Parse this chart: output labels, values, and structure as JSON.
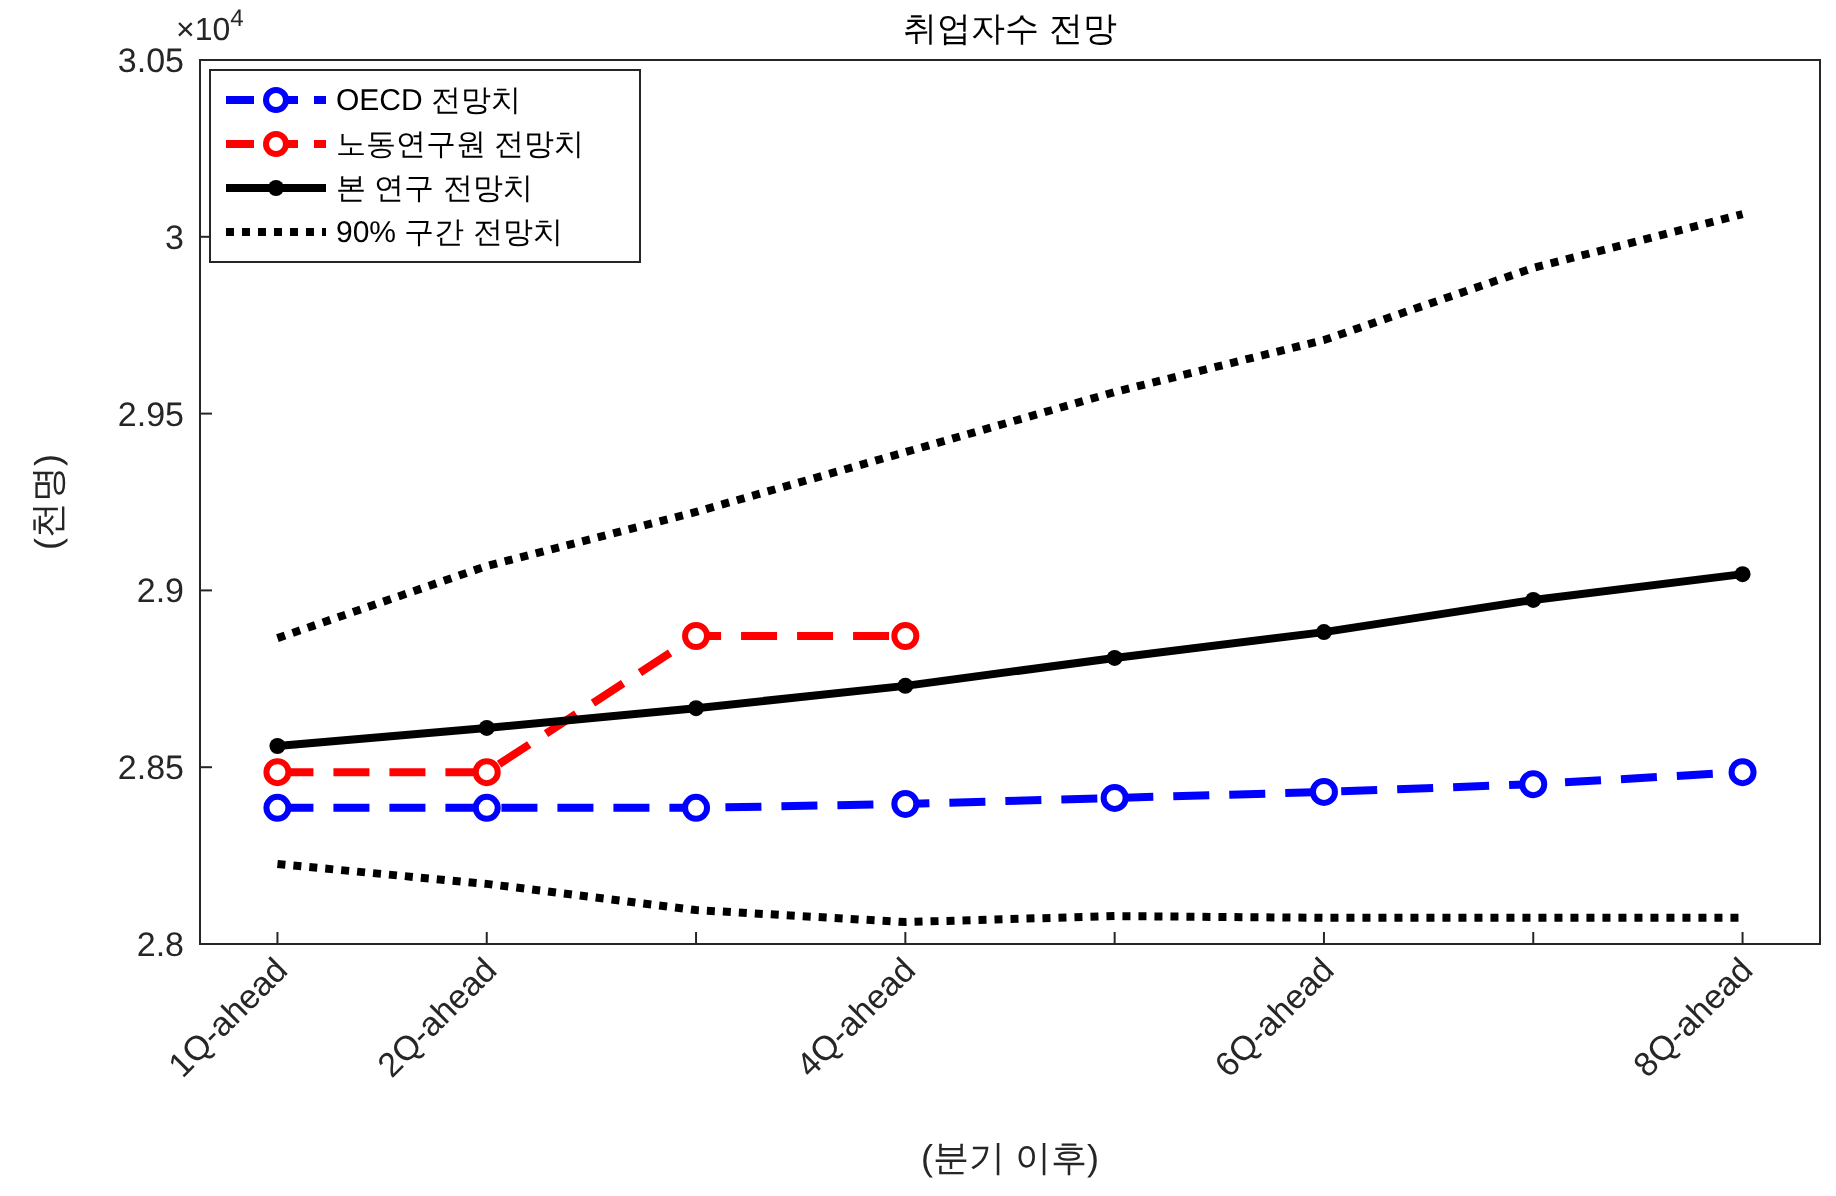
{
  "chart_data": {
    "type": "line",
    "title": "취업자수 전망",
    "xlabel": "(분기 이후)",
    "ylabel": "(천명)",
    "annotations": [
      "×10$^{4}$"
    ],
    "categories": [
      "1Q-ahead",
      "2Q-ahead",
      null,
      "4Q-ahead",
      null,
      "6Q-ahead",
      null,
      "8Q-ahead"
    ],
    "ylim": [
      2.8,
      3.05
    ],
    "yticks": [
      2.8,
      2.85,
      2.9,
      2.95,
      3,
      3.05
    ],
    "grid": false,
    "legend": "top left",
    "series": [
      {
        "name": "OECD 전망치",
        "color": "#0000ff",
        "marker": "circle",
        "line_style": "dashed",
        "values": [
          2.8385,
          2.8385,
          2.8385,
          2.8396,
          2.8413,
          2.843,
          2.8452,
          2.8486
        ]
      },
      {
        "name": "노동연구원 전망치",
        "color": "#ff0000",
        "marker": "circle",
        "line_style": "dashed",
        "values": [
          2.8486,
          2.8486,
          2.8871,
          2.8871,
          null,
          null,
          null,
          null
        ]
      },
      {
        "name": "본 연구 전망치",
        "color": "#000000",
        "marker": "dot",
        "line_style": "solid",
        "values": [
          2.856,
          2.8611,
          2.8667,
          2.873,
          2.8809,
          2.8882,
          2.8973,
          2.9046
        ]
      },
      {
        "name": "90% 구간 전망치",
        "color": "#000000",
        "marker": "none",
        "line_style": "dotted",
        "values": [
          2.8865,
          2.9069,
          2.9222,
          2.9391,
          2.9561,
          2.9708,
          2.9912,
          3.0064
        ]
      },
      {
        "color": "#000000",
        "marker": "none",
        "line_style": "dotted",
        "values": [
          2.8226,
          2.817,
          2.8096,
          2.8062,
          2.8079,
          2.8074,
          2.8074,
          2.8074
        ]
      }
    ]
  }
}
